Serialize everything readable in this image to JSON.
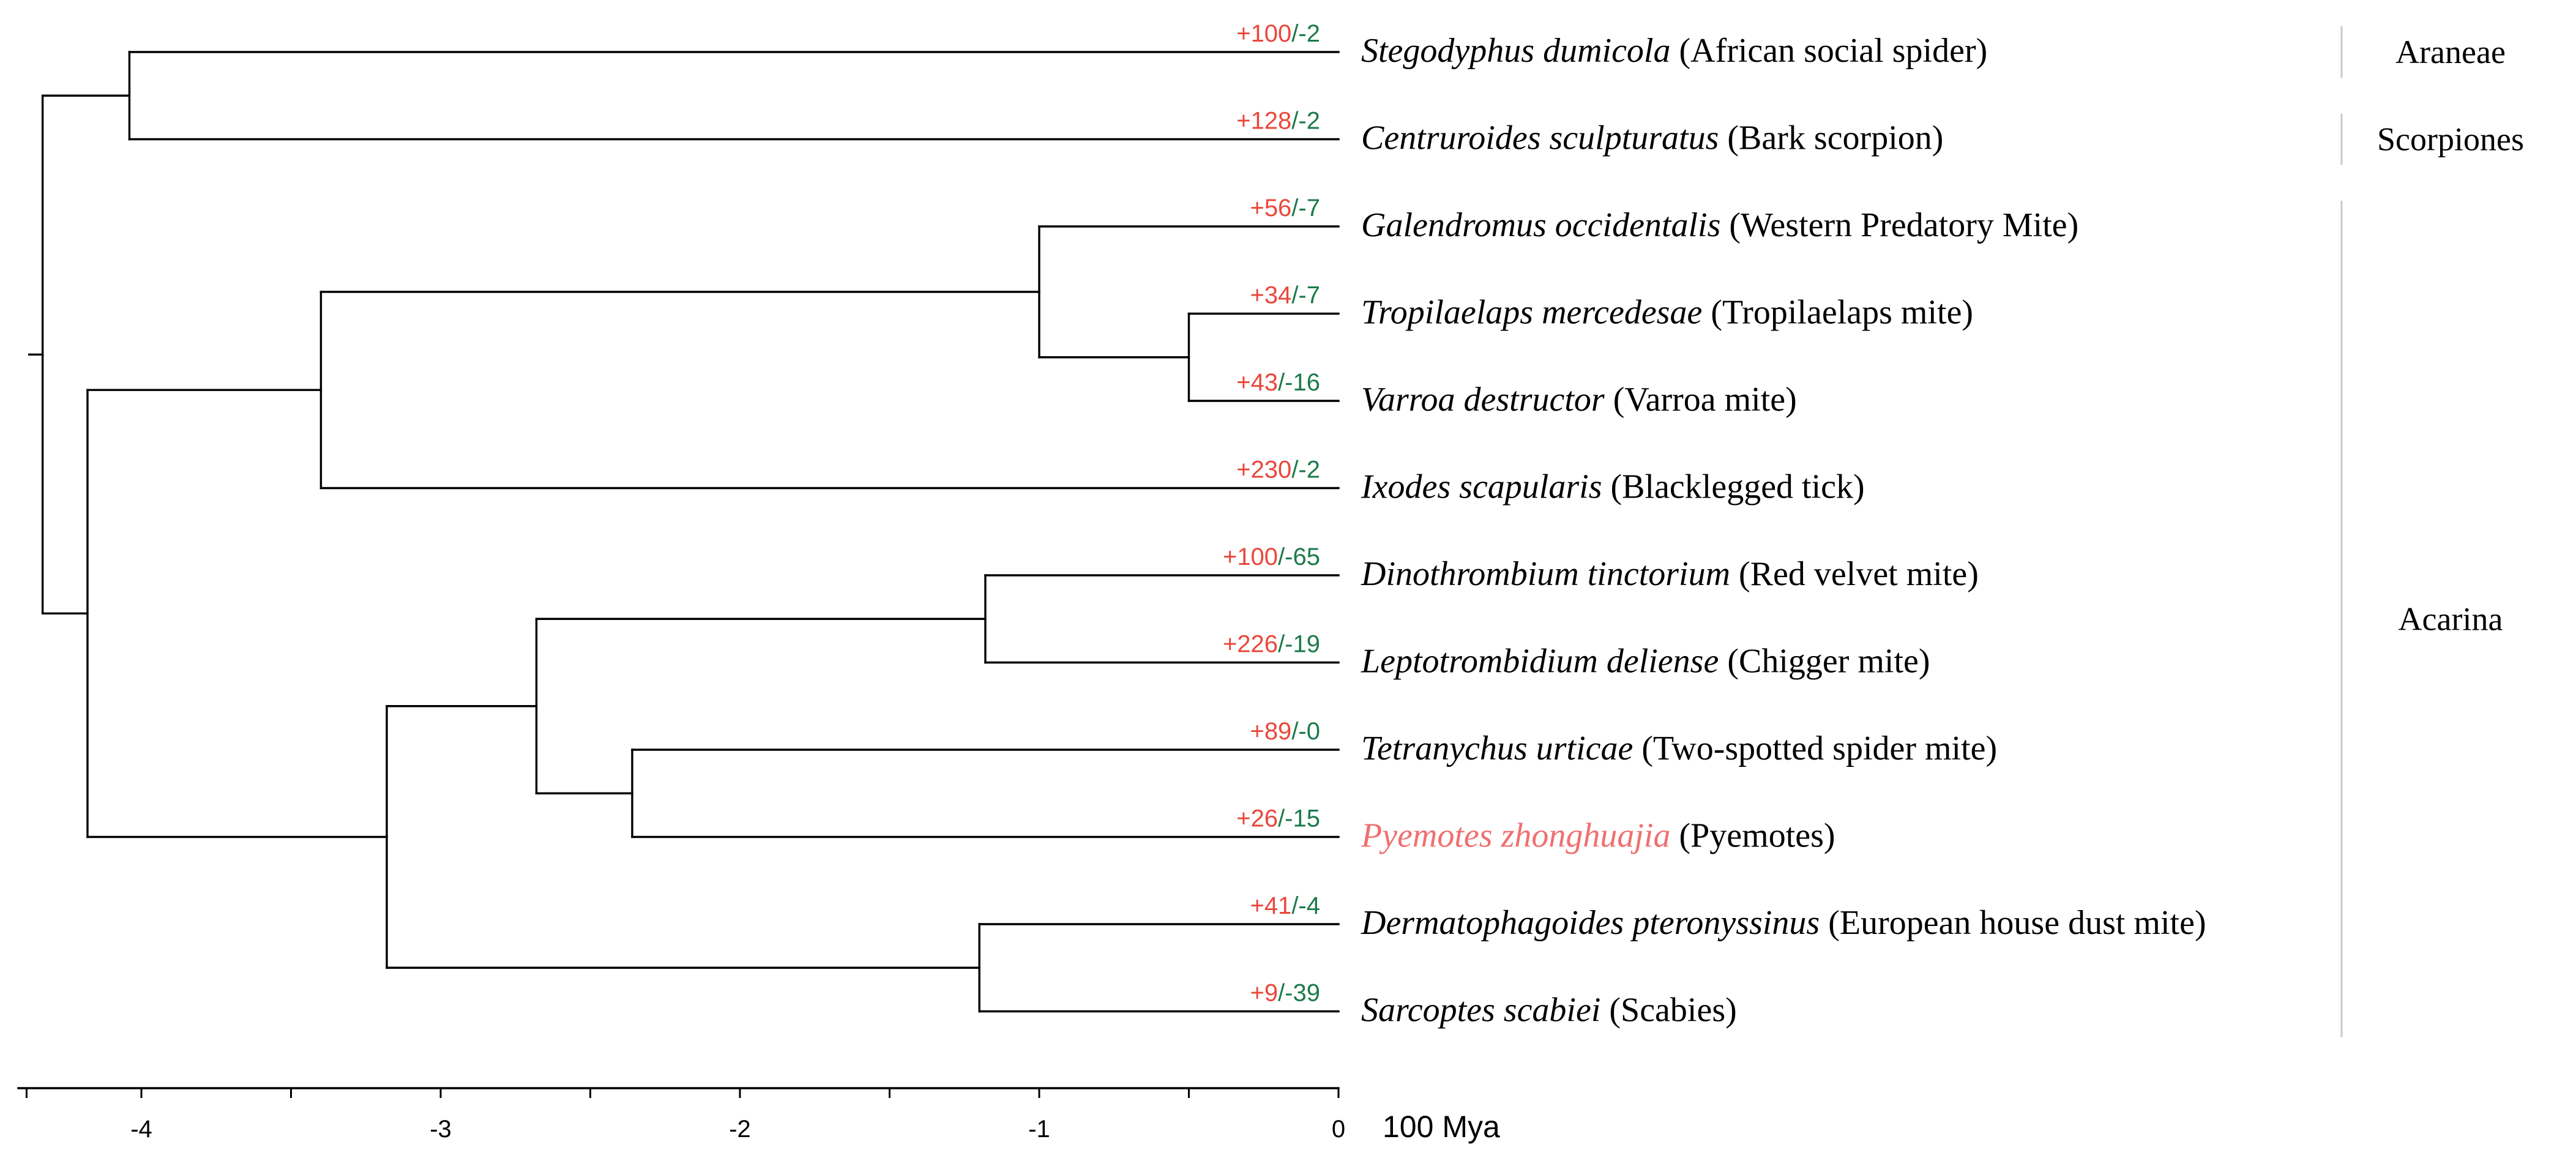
{
  "figure": {
    "type": "phylogenetic-tree",
    "axis": {
      "ticks": [
        -4,
        -3,
        -2,
        -1,
        0
      ],
      "unit_label": "100 Mya",
      "min": -4.4,
      "max": 0
    },
    "colors": {
      "gain": "#e8483c",
      "loss": "#1b7a4a",
      "highlight": "#f07070",
      "line": "#000000",
      "group_divider": "#c8c8c8"
    },
    "leaves": [
      {
        "id": "stegodyphus",
        "species": "Stegodyphus dumicola",
        "common": "(African social spider)",
        "gain": "+100",
        "loss": "/-2",
        "highlight": false
      },
      {
        "id": "centruroides",
        "species": "Centruroides sculpturatus",
        "common": "(Bark scorpion)",
        "gain": "+128",
        "loss": "/-2",
        "highlight": false
      },
      {
        "id": "galendromus",
        "species": "Galendromus occidentalis",
        "common": "(Western Predatory Mite)",
        "gain": "+56",
        "loss": "/-7",
        "highlight": false
      },
      {
        "id": "tropilaelaps",
        "species": "Tropilaelaps mercedesae",
        "common": "(Tropilaelaps mite)",
        "gain": "+34",
        "loss": "/-7",
        "highlight": false
      },
      {
        "id": "varroa",
        "species": "Varroa destructor",
        "common": "(Varroa mite)",
        "gain": "+43",
        "loss": "/-16",
        "highlight": false
      },
      {
        "id": "ixodes",
        "species": "Ixodes scapularis",
        "common": "(Blacklegged tick)",
        "gain": "+230",
        "loss": "/-2",
        "highlight": false
      },
      {
        "id": "dinothrombium",
        "species": "Dinothrombium tinctorium",
        "common": "(Red velvet mite)",
        "gain": "+100",
        "loss": "/-65",
        "highlight": false
      },
      {
        "id": "leptotrombidium",
        "species": "Leptotrombidium deliense",
        "common": "(Chigger mite)",
        "gain": "+226",
        "loss": "/-19",
        "highlight": false
      },
      {
        "id": "tetranychus",
        "species": "Tetranychus urticae",
        "common": "(Two-spotted spider mite)",
        "gain": "+89",
        "loss": "/-0",
        "highlight": false
      },
      {
        "id": "pyemotes",
        "species": "Pyemotes zhonghuajia",
        "common": "(Pyemotes)",
        "gain": "+26",
        "loss": "/-15",
        "highlight": true
      },
      {
        "id": "dermatophagoides",
        "species": "Dermatophagoides pteronyssinus",
        "common": "(European house dust mite)",
        "gain": "+41",
        "loss": "/-4",
        "highlight": false
      },
      {
        "id": "sarcoptes",
        "species": "Sarcoptes scabiei",
        "common": "(Scabies)",
        "gain": "+9",
        "loss": "/-39",
        "highlight": false
      }
    ],
    "nodes": [
      {
        "id": "n_tv",
        "age": -0.5,
        "children": [
          "tropilaelaps",
          "varroa"
        ]
      },
      {
        "id": "n_gtv",
        "age": -1.0,
        "children": [
          "galendromus",
          "n_tv"
        ]
      },
      {
        "id": "n_para",
        "age": -3.4,
        "children": [
          "n_gtv",
          "ixodes"
        ]
      },
      {
        "id": "n_dl",
        "age": -1.18,
        "children": [
          "dinothrombium",
          "leptotrombidium"
        ]
      },
      {
        "id": "n_tp",
        "age": -2.36,
        "children": [
          "tetranychus",
          "pyemotes"
        ]
      },
      {
        "id": "n_trom",
        "age": -2.68,
        "children": [
          "n_dl",
          "n_tp"
        ]
      },
      {
        "id": "n_ds",
        "age": -1.2,
        "children": [
          "dermatophagoides",
          "sarcoptes"
        ]
      },
      {
        "id": "n_acari",
        "age": -3.18,
        "children": [
          "n_trom",
          "n_ds"
        ]
      },
      {
        "id": "n_acarina",
        "age": -4.18,
        "children": [
          "n_para",
          "n_acari"
        ]
      },
      {
        "id": "n_ss",
        "age": -4.04,
        "children": [
          "stegodyphus",
          "centruroides"
        ]
      },
      {
        "id": "root",
        "age": -4.33,
        "children": [
          "n_ss",
          "n_acarina"
        ]
      }
    ],
    "groups": [
      {
        "name": "Araneae",
        "first": 0,
        "last": 0
      },
      {
        "name": "Scorpiones",
        "first": 1,
        "last": 1
      },
      {
        "name": "Acarina",
        "first": 2,
        "last": 11
      }
    ]
  }
}
